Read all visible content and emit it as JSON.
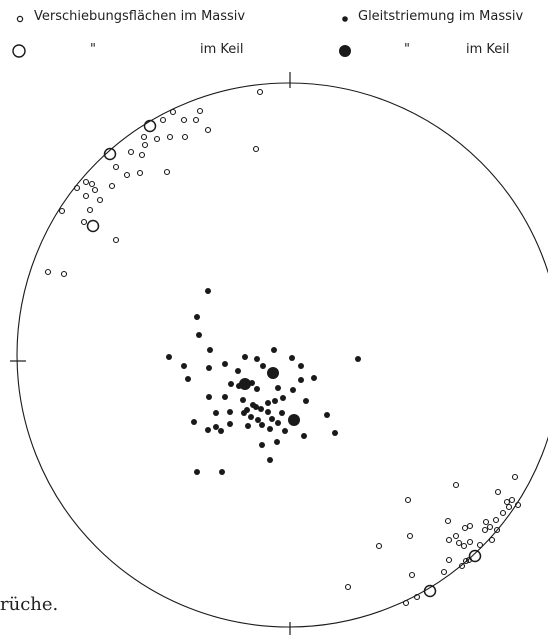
{
  "legend": {
    "planes_label": "Verschiebungsflächen im Massiv",
    "ditto_planes": "\"",
    "planes_wedge_label": "im Keil",
    "striation_label": "Gleitstriemung im Massiv",
    "ditto_striation": "\"",
    "striation_wedge_label": "im Keil"
  },
  "caption_fragment": "rüche.",
  "symbols": {
    "small_open_circle-icon": "Verschiebungsflächen im Massiv",
    "large_open_circle-icon": "Verschiebungsflächen im Keil",
    "small_filled_dot-icon": "Gleitstriemung im Massiv",
    "large_filled_dot-icon": "Gleitstriemung im Keil"
  },
  "colors": {
    "ink": "#1a1a1a",
    "paper": "#ffffff"
  }
}
